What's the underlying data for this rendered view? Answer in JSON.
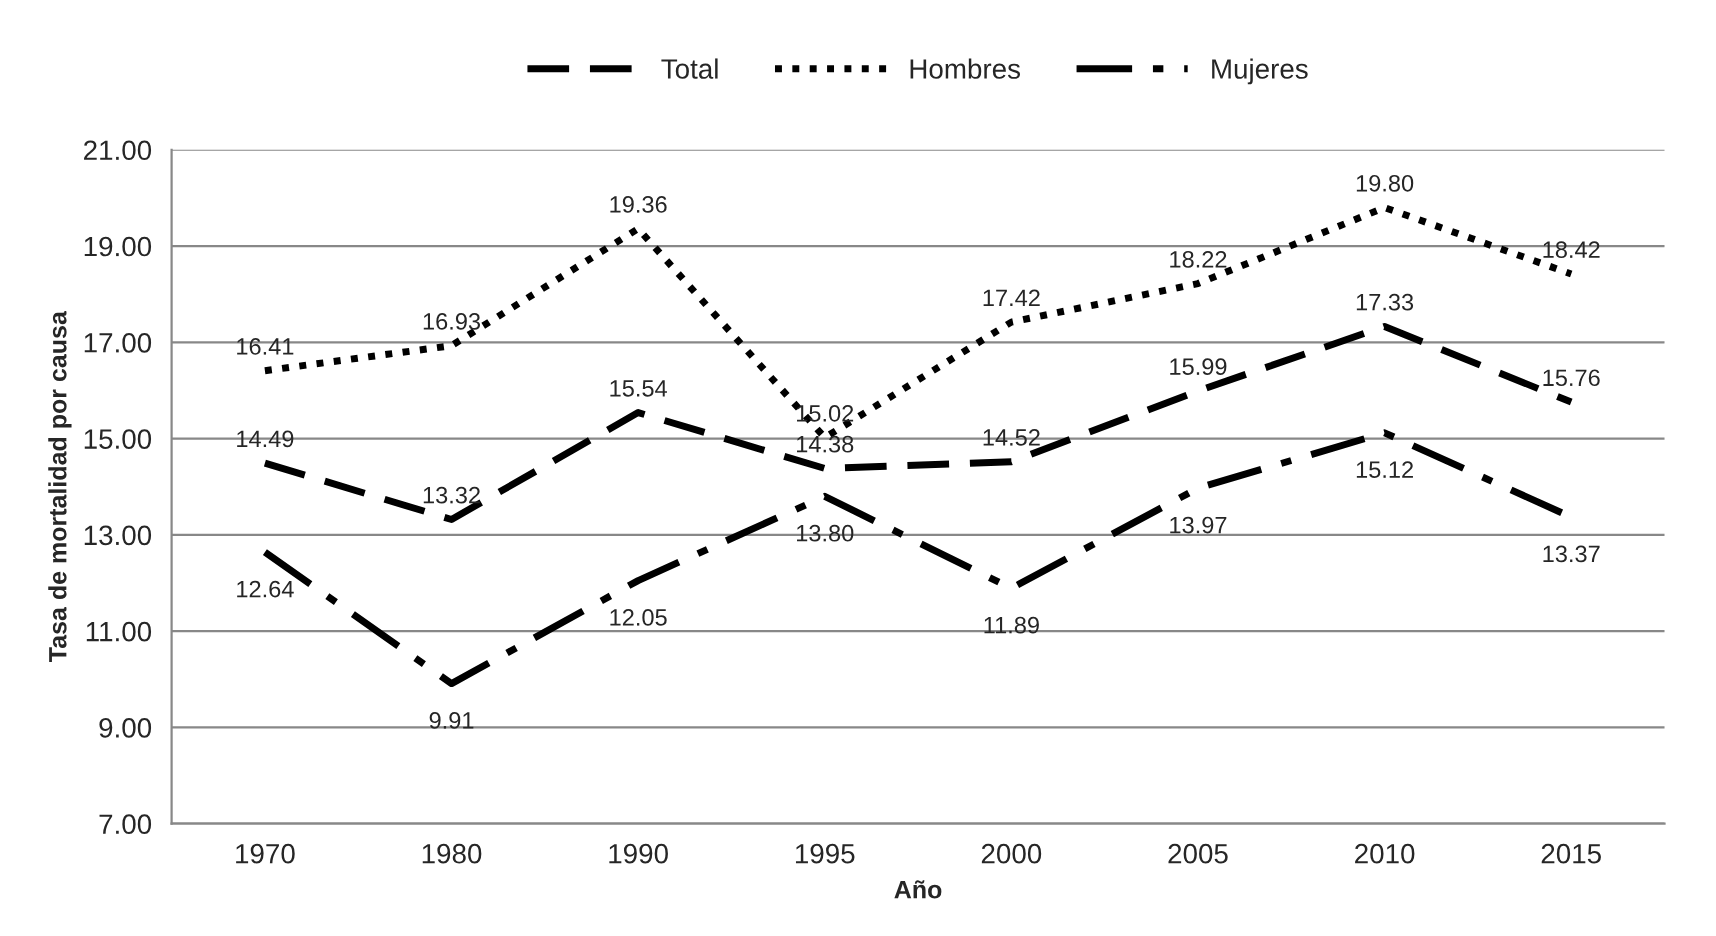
{
  "chart_data": {
    "type": "line",
    "xlabel": "Año",
    "ylabel": "Tasa de mortalidad por causa",
    "categories": [
      "1970",
      "1980",
      "1990",
      "1995",
      "2000",
      "2005",
      "2010",
      "2015"
    ],
    "series": [
      {
        "name": "Total",
        "color": "#000000",
        "line_style": "dashed",
        "values": [
          14.49,
          13.32,
          15.54,
          14.38,
          14.52,
          15.99,
          17.33,
          15.76
        ],
        "value_labels": [
          "14.49",
          "13.32",
          "15.54",
          "14.38",
          "14.52",
          "15.99",
          "17.33",
          "15.76"
        ]
      },
      {
        "name": "Hombres",
        "color": "#000000",
        "line_style": "dotted",
        "values": [
          16.41,
          16.93,
          19.36,
          15.02,
          17.42,
          18.22,
          19.8,
          18.42
        ],
        "value_labels": [
          "16.41",
          "16.93",
          "19.36",
          "15.02",
          "17.42",
          "18.22",
          "19.80",
          "18.42"
        ]
      },
      {
        "name": "Mujeres",
        "color": "#000000",
        "line_style": "dashdot",
        "values": [
          12.64,
          9.91,
          12.05,
          13.8,
          11.89,
          13.97,
          15.12,
          13.37
        ],
        "value_labels": [
          "12.64",
          "9.91",
          "12.05",
          "13.80",
          "11.89",
          "13.97",
          "15.12",
          "13.37"
        ]
      }
    ],
    "ylim": [
      7,
      21
    ],
    "yticks": [
      {
        "value": 7,
        "label": "7.00"
      },
      {
        "value": 9,
        "label": "9.00"
      },
      {
        "value": 11,
        "label": "11.00"
      },
      {
        "value": 13,
        "label": "13.00"
      },
      {
        "value": 15,
        "label": "15.00"
      },
      {
        "value": 17,
        "label": "17.00"
      },
      {
        "value": 19,
        "label": "19.00"
      },
      {
        "value": 21,
        "label": "21.00"
      }
    ],
    "grid": "y",
    "legend": "top",
    "marker": "none"
  }
}
